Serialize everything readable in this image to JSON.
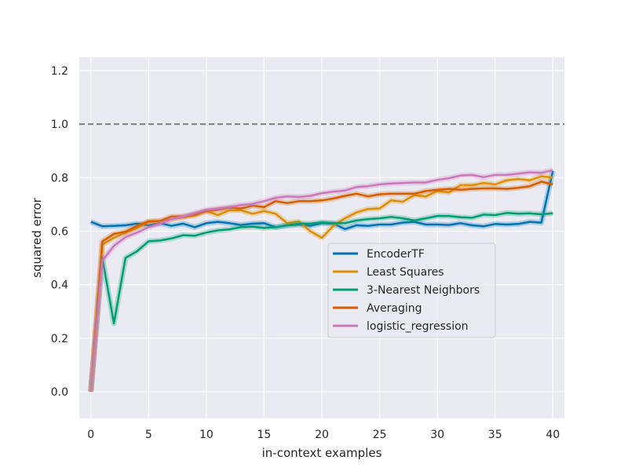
{
  "chart_data": {
    "type": "line",
    "xlabel": "in-context examples",
    "ylabel": "squared error",
    "xlim": [
      -1,
      41
    ],
    "ylim": [
      -0.1,
      1.25
    ],
    "xticks": [
      0,
      5,
      10,
      15,
      20,
      25,
      30,
      35,
      40
    ],
    "yticks": [
      0.0,
      0.2,
      0.4,
      0.6,
      0.8,
      1.0,
      1.2
    ],
    "x": [
      0,
      1,
      2,
      3,
      4,
      5,
      6,
      7,
      8,
      9,
      10,
      11,
      12,
      13,
      14,
      15,
      16,
      17,
      18,
      19,
      20,
      21,
      22,
      23,
      24,
      25,
      26,
      27,
      28,
      29,
      30,
      31,
      32,
      33,
      34,
      35,
      36,
      37,
      38,
      39,
      40
    ],
    "reference_line": {
      "y": 1.0,
      "style": "dashed",
      "color": "#7f7f7f"
    },
    "grid": true,
    "legend_position": "center-right",
    "series": [
      {
        "name": "EncoderTF",
        "color": "#0173b2",
        "values": [
          0.635,
          0.618,
          0.62,
          0.622,
          0.628,
          0.622,
          0.63,
          0.62,
          0.628,
          0.615,
          0.63,
          0.635,
          0.63,
          0.623,
          0.628,
          0.63,
          0.615,
          0.622,
          0.625,
          0.62,
          0.63,
          0.628,
          0.608,
          0.622,
          0.62,
          0.625,
          0.625,
          0.632,
          0.635,
          0.625,
          0.625,
          0.623,
          0.63,
          0.622,
          0.618,
          0.627,
          0.625,
          0.627,
          0.635,
          0.632,
          0.825
        ]
      },
      {
        "name": "Least Squares",
        "color": "#de8f05",
        "values": [
          0.0,
          0.55,
          0.575,
          0.595,
          0.612,
          0.635,
          0.638,
          0.645,
          0.652,
          0.658,
          0.675,
          0.66,
          0.678,
          0.678,
          0.665,
          0.675,
          0.665,
          0.63,
          0.637,
          0.6,
          0.575,
          0.62,
          0.648,
          0.67,
          0.683,
          0.685,
          0.715,
          0.71,
          0.735,
          0.73,
          0.75,
          0.745,
          0.772,
          0.772,
          0.78,
          0.775,
          0.79,
          0.795,
          0.79,
          0.805,
          0.8
        ]
      },
      {
        "name": "3-Nearest Neighbors",
        "color": "#029e73",
        "values": [
          0.0,
          0.5,
          0.255,
          0.5,
          0.525,
          0.562,
          0.565,
          0.573,
          0.585,
          0.583,
          0.595,
          0.603,
          0.607,
          0.615,
          0.617,
          0.612,
          0.615,
          0.622,
          0.628,
          0.628,
          0.633,
          0.63,
          0.63,
          0.64,
          0.645,
          0.648,
          0.653,
          0.648,
          0.64,
          0.648,
          0.657,
          0.657,
          0.652,
          0.65,
          0.662,
          0.66,
          0.668,
          0.665,
          0.667,
          0.663,
          0.667
        ]
      },
      {
        "name": "Averaging",
        "color": "#d55e00",
        "values": [
          0.0,
          0.562,
          0.59,
          0.598,
          0.62,
          0.637,
          0.638,
          0.655,
          0.655,
          0.663,
          0.675,
          0.68,
          0.688,
          0.685,
          0.695,
          0.69,
          0.712,
          0.705,
          0.712,
          0.712,
          0.715,
          0.722,
          0.732,
          0.74,
          0.73,
          0.738,
          0.74,
          0.74,
          0.74,
          0.75,
          0.755,
          0.758,
          0.755,
          0.758,
          0.76,
          0.76,
          0.758,
          0.762,
          0.768,
          0.785,
          0.775
        ]
      },
      {
        "name": "logistic_regression",
        "color": "#cc78bc",
        "values": [
          0.0,
          0.49,
          0.545,
          0.578,
          0.595,
          0.615,
          0.628,
          0.645,
          0.655,
          0.668,
          0.68,
          0.685,
          0.69,
          0.698,
          0.702,
          0.712,
          0.725,
          0.73,
          0.728,
          0.732,
          0.742,
          0.748,
          0.752,
          0.765,
          0.768,
          0.775,
          0.778,
          0.78,
          0.782,
          0.782,
          0.792,
          0.798,
          0.808,
          0.81,
          0.802,
          0.81,
          0.81,
          0.815,
          0.82,
          0.818,
          0.828
        ]
      }
    ]
  }
}
